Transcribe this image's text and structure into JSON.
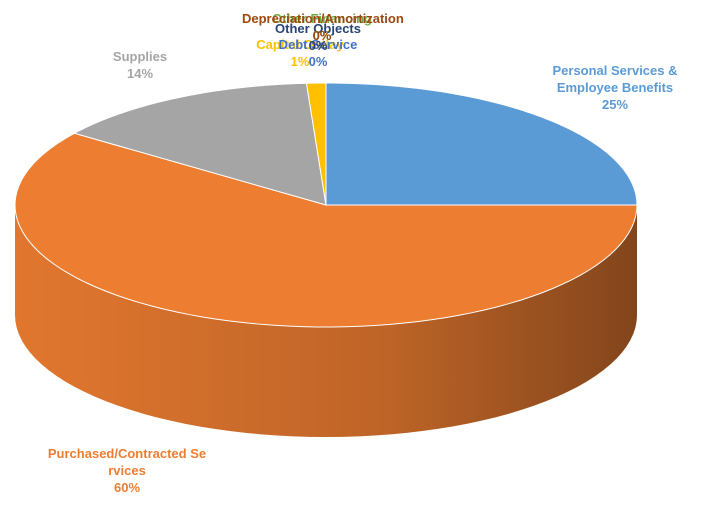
{
  "chart_data": {
    "type": "pie",
    "categories": [
      "Personal Services & Employee Benefits",
      "Purchased/Contracted Services",
      "Supplies",
      "Capital Outlay",
      "Debt Service",
      "Other Objects",
      "Other Financing",
      "Depreciation/Amortization"
    ],
    "values": [
      25,
      60,
      14,
      1,
      0,
      0,
      0,
      0
    ],
    "value_labels": [
      "25%",
      "60%",
      "14%",
      "1%",
      "0%",
      "0%",
      "0%",
      "0%"
    ],
    "colors": [
      "#5b9bd5",
      "#ed7d31",
      "#a5a5a5",
      "#ffc000",
      "#4472c4",
      "#264478",
      "#70ad47",
      "#9e480e"
    ]
  }
}
